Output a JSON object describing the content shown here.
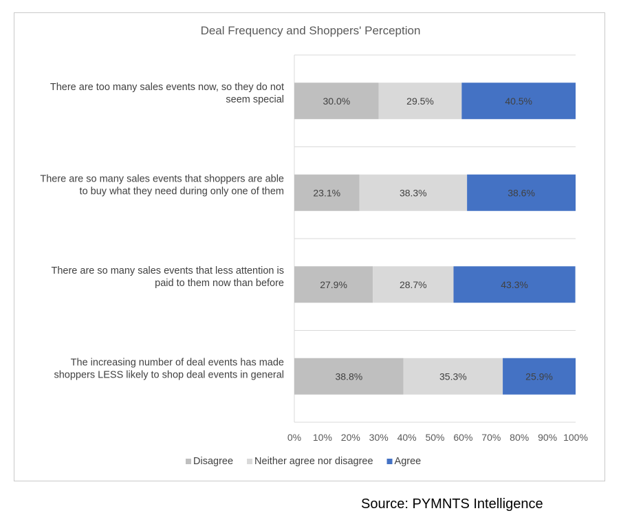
{
  "chart_data": {
    "type": "bar",
    "orientation": "horizontal",
    "stacked": true,
    "percent_stacked": true,
    "title": "Deal Frequency and Shoppers' Perception",
    "categories": [
      [
        "There are too many sales events now, so they do not",
        "seem special"
      ],
      [
        "There are so many sales events that shoppers are able",
        "to buy what they need during only one of them"
      ],
      [
        "There are so many sales events that less attention is",
        "paid to them now than before"
      ],
      [
        "The increasing number of deal events has made",
        "shoppers LESS likely to shop deal events in general"
      ]
    ],
    "series": [
      {
        "name": "Disagree",
        "color": "#bfbfbf",
        "values": [
          30.0,
          23.1,
          27.9,
          38.8
        ],
        "labels": [
          "30.0%",
          "23.1%",
          "27.9%",
          "38.8%"
        ]
      },
      {
        "name": "Neither agree nor disagree",
        "color": "#d9d9d9",
        "values": [
          29.5,
          38.3,
          28.7,
          35.3
        ],
        "labels": [
          "29.5%",
          "38.3%",
          "28.7%",
          "35.3%"
        ]
      },
      {
        "name": "Agree",
        "color": "#4472c4",
        "values": [
          40.5,
          38.6,
          43.3,
          25.9
        ],
        "labels": [
          "40.5%",
          "38.6%",
          "43.3%",
          "25.9%"
        ]
      }
    ],
    "xlim": [
      0,
      100
    ],
    "x_ticks": [
      "0%",
      "10%",
      "20%",
      "30%",
      "40%",
      "50%",
      "60%",
      "70%",
      "80%",
      "90%",
      "100%"
    ],
    "grid": true,
    "legend_position": "bottom"
  },
  "source_note": "Source: PYMNTS Intelligence"
}
